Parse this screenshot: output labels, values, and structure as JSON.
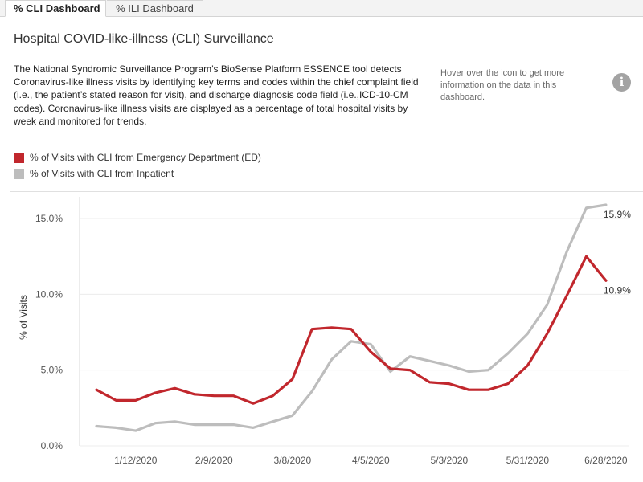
{
  "tabs": [
    {
      "label": "% CLI Dashboard",
      "active": true
    },
    {
      "label": "% ILI Dashboard",
      "active": false
    }
  ],
  "title": "Hospital COVID-like-illness (CLI) Surveillance",
  "description": "The National Syndromic Surveillance Program’s BioSense Platform ESSENCE tool detects Coronavirus-like illness visits by identifying key terms and codes within the chief complaint field (i.e., the patient’s stated reason for visit), and discharge diagnosis code field (i.e.,ICD-10-CM codes).  Coronavirus-like illness visits are displayed as a percentage of total hospital visits by week and monitored for trends.",
  "hover_note": "Hover over the icon to get more information on the data in this dashboard.",
  "info_icon": {
    "glyph": "i",
    "name": "info-icon"
  },
  "colors": {
    "ed": "#c1272d",
    "inpatient": "#bdbdbd"
  },
  "chart_data": {
    "type": "line",
    "title": "",
    "xlabel": "",
    "ylabel": "% of Visits",
    "ylim": [
      0,
      15.9
    ],
    "y_ticks": [
      0,
      5,
      10,
      15
    ],
    "y_tick_labels": [
      "0.0%",
      "5.0%",
      "10.0%",
      "15.0%"
    ],
    "grid": true,
    "legend_position": "top-left",
    "x": [
      "12/29/2019",
      "1/5/2020",
      "1/12/2020",
      "1/19/2020",
      "1/26/2020",
      "2/2/2020",
      "2/9/2020",
      "2/16/2020",
      "2/23/2020",
      "3/1/2020",
      "3/8/2020",
      "3/15/2020",
      "3/22/2020",
      "3/29/2020",
      "4/5/2020",
      "4/12/2020",
      "4/19/2020",
      "4/26/2020",
      "5/3/2020",
      "5/10/2020",
      "5/17/2020",
      "5/24/2020",
      "5/31/2020",
      "6/7/2020",
      "6/14/2020",
      "6/21/2020",
      "6/28/2020"
    ],
    "x_tick_labels": [
      "1/12/2020",
      "2/9/2020",
      "3/8/2020",
      "4/5/2020",
      "5/3/2020",
      "5/31/2020",
      "6/28/2020"
    ],
    "x_tick_indices": [
      2,
      6,
      10,
      14,
      18,
      22,
      26
    ],
    "series": [
      {
        "name": "% of Visits with CLI from Emergency Department (ED)",
        "color": "#c1272d",
        "values": [
          3.7,
          3.0,
          3.0,
          3.5,
          3.8,
          3.4,
          3.3,
          3.3,
          2.8,
          3.3,
          4.4,
          7.7,
          7.8,
          7.7,
          6.2,
          5.1,
          5.0,
          4.2,
          4.1,
          3.7,
          3.7,
          4.1,
          5.3,
          7.4,
          9.9,
          12.5,
          10.9
        ],
        "end_label": "10.9%"
      },
      {
        "name": "% of Visits with CLI from Inpatient",
        "color": "#bdbdbd",
        "values": [
          1.3,
          1.2,
          1.0,
          1.5,
          1.6,
          1.4,
          1.4,
          1.4,
          1.2,
          1.6,
          2.0,
          3.6,
          5.7,
          6.9,
          6.7,
          4.9,
          5.9,
          5.6,
          5.3,
          4.9,
          5.0,
          6.1,
          7.4,
          9.3,
          12.8,
          15.7,
          15.9
        ],
        "end_label": "15.9%"
      }
    ]
  }
}
